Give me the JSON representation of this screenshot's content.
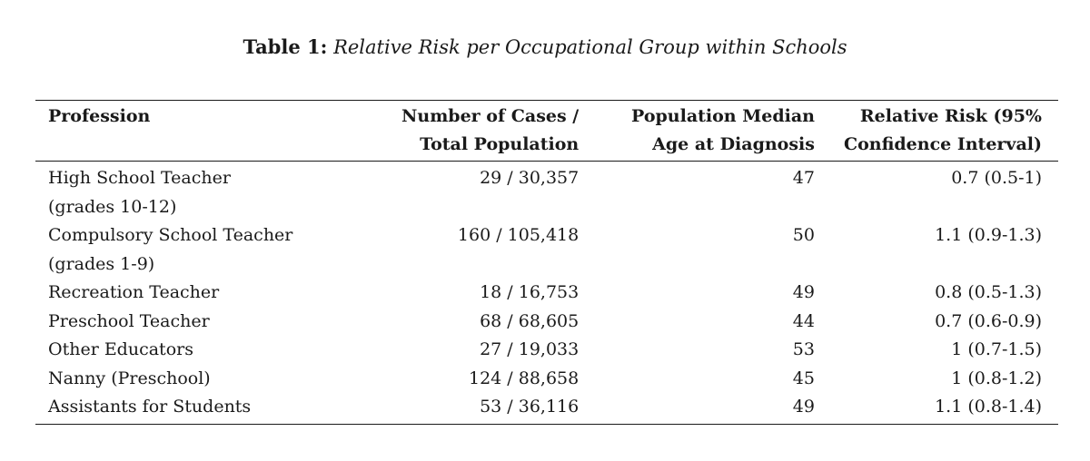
{
  "caption": {
    "label": "Table 1:",
    "title": "Relative Risk per Occupational Group within Schools"
  },
  "table": {
    "headers": [
      {
        "line1": "Profession",
        "line2": ""
      },
      {
        "line1": "Number of Cases /",
        "line2": "Total Population"
      },
      {
        "line1": "Population Median",
        "line2": "Age at Diagnosis"
      },
      {
        "line1": "Relative Risk (95%",
        "line2": "Confidence Interval)"
      }
    ],
    "rows": [
      {
        "profession": [
          "High School Teacher",
          "(grades 10-12)"
        ],
        "cases": "29 / 30,357",
        "age": "47",
        "rr": "0.7 (0.5-1)"
      },
      {
        "profession": [
          "Compulsory School Teacher",
          "(grades 1-9)"
        ],
        "cases": "160 / 105,418",
        "age": "50",
        "rr": "1.1 (0.9-1.3)"
      },
      {
        "profession": [
          "Recreation Teacher"
        ],
        "cases": "18 / 16,753",
        "age": "49",
        "rr": "0.8 (0.5-1.3)"
      },
      {
        "profession": [
          "Preschool Teacher"
        ],
        "cases": "68 / 68,605",
        "age": "44",
        "rr": "0.7 (0.6-0.9)"
      },
      {
        "profession": [
          "Other Educators"
        ],
        "cases": "27 / 19,033",
        "age": "53",
        "rr": "1 (0.7-1.5)"
      },
      {
        "profession": [
          "Nanny (Preschool)"
        ],
        "cases": "124 / 88,658",
        "age": "45",
        "rr": "1 (0.8-1.2)"
      },
      {
        "profession": [
          "Assistants for Students"
        ],
        "cases": "53 / 36,116",
        "age": "49",
        "rr": "1.1 (0.8-1.4)"
      }
    ]
  }
}
